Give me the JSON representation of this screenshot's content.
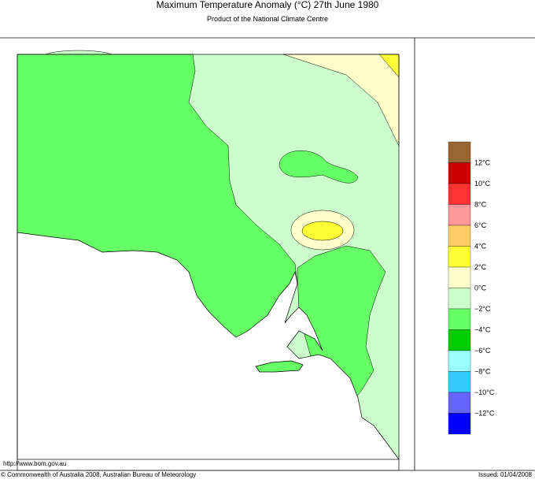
{
  "header": {
    "title": "Maximum Temperature Anomaly (°C)  27th June 1980",
    "subtitle": "Product of the National Climate Centre"
  },
  "legend": {
    "colors": [
      "#996633",
      "#cc0000",
      "#ff3333",
      "#ff9999",
      "#ffcc66",
      "#ffff33",
      "#ffffcc",
      "#ccffcc",
      "#66ff66",
      "#00cc00",
      "#99ffff",
      "#33ccff",
      "#6666ff",
      "#0000ff"
    ],
    "labels": [
      "12°C",
      "10°C",
      "8°C",
      "6°C",
      "4°C",
      "2°C",
      "0°C",
      "−2°C",
      "−4°C",
      "−6°C",
      "−8°C",
      "−10°C",
      "−12°C"
    ]
  },
  "footer": {
    "url": "http://www.bom.gov.au",
    "copyright": "© Commonwealth of Australia 2008, Australian Bureau of Meteorology",
    "issued": "Issued: 01/04/2008"
  }
}
